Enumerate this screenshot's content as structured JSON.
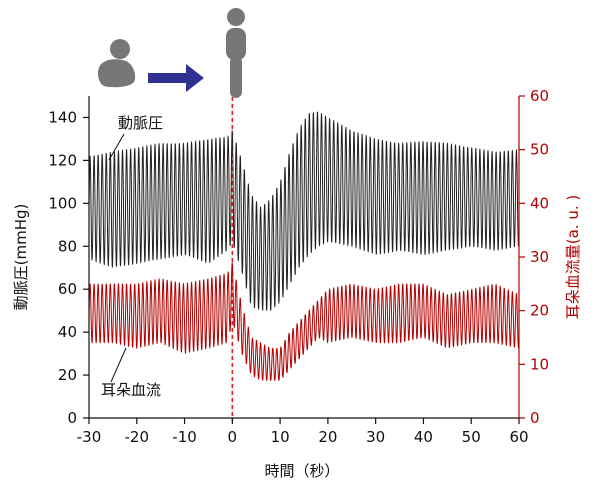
{
  "chart_data": {
    "type": "line",
    "xlabel": "時間（秒）",
    "ylabel_left": "動脈圧(mmHg)",
    "ylabel_right": "耳朵血流量(a. u. )",
    "xlim": [
      -30,
      60
    ],
    "ylim_left": [
      0,
      150
    ],
    "ylim_right": [
      0,
      60
    ],
    "x_ticks": [
      "-30",
      "-20",
      "-10",
      "0",
      "10",
      "20",
      "30",
      "40",
      "50",
      "60"
    ],
    "y_ticks_left": [
      "0",
      "20",
      "40",
      "60",
      "80",
      "100",
      "120",
      "140"
    ],
    "y_ticks_right": [
      "0",
      "10",
      "20",
      "30",
      "40",
      "50",
      "60"
    ],
    "event_x": 0,
    "grid": false,
    "series": [
      {
        "name": "動脈圧",
        "axis": "left",
        "color": "#222222",
        "beat_period_s": 0.85,
        "x": [
          -30,
          -25,
          -20,
          -15,
          -10,
          -5,
          -1,
          0,
          2,
          4,
          6,
          8,
          10,
          12,
          14,
          16,
          18,
          20,
          25,
          30,
          35,
          40,
          45,
          50,
          55,
          60
        ],
        "upper": [
          122,
          124,
          126,
          128,
          128,
          130,
          131,
          134,
          120,
          104,
          98,
          102,
          110,
          124,
          135,
          142,
          143,
          140,
          134,
          130,
          128,
          129,
          128,
          126,
          124,
          125
        ],
        "lower": [
          74,
          70,
          72,
          74,
          76,
          72,
          78,
          82,
          68,
          52,
          50,
          50,
          54,
          62,
          70,
          76,
          80,
          82,
          80,
          76,
          78,
          76,
          78,
          80,
          78,
          80
        ]
      },
      {
        "name": "耳朵血流",
        "axis": "right",
        "color": "#b30000",
        "beat_period_s": 0.85,
        "x": [
          -30,
          -25,
          -20,
          -15,
          -10,
          -5,
          -1,
          0,
          2,
          4,
          6,
          8,
          10,
          12,
          14,
          16,
          18,
          20,
          25,
          30,
          35,
          40,
          45,
          50,
          55,
          60
        ],
        "upper": [
          25,
          25,
          25,
          26,
          25,
          26,
          27,
          29,
          21,
          15,
          14,
          13,
          13,
          16,
          18,
          20,
          22,
          24,
          25,
          24,
          25,
          25,
          23,
          24,
          25,
          23
        ],
        "lower": [
          14,
          14,
          13,
          14,
          12,
          13,
          14,
          18,
          12,
          8,
          7,
          7,
          7,
          9,
          11,
          13,
          15,
          14,
          15,
          14,
          14,
          15,
          13,
          14,
          14,
          13
        ]
      }
    ]
  },
  "illustrations": {
    "posture_before": "squatting-person-icon",
    "transition": "arrow-right-icon",
    "posture_after": "standing-person-icon",
    "arrow_color": "#2e3192",
    "figure_color": "#777777",
    "event_line_color": "#e0201a"
  }
}
